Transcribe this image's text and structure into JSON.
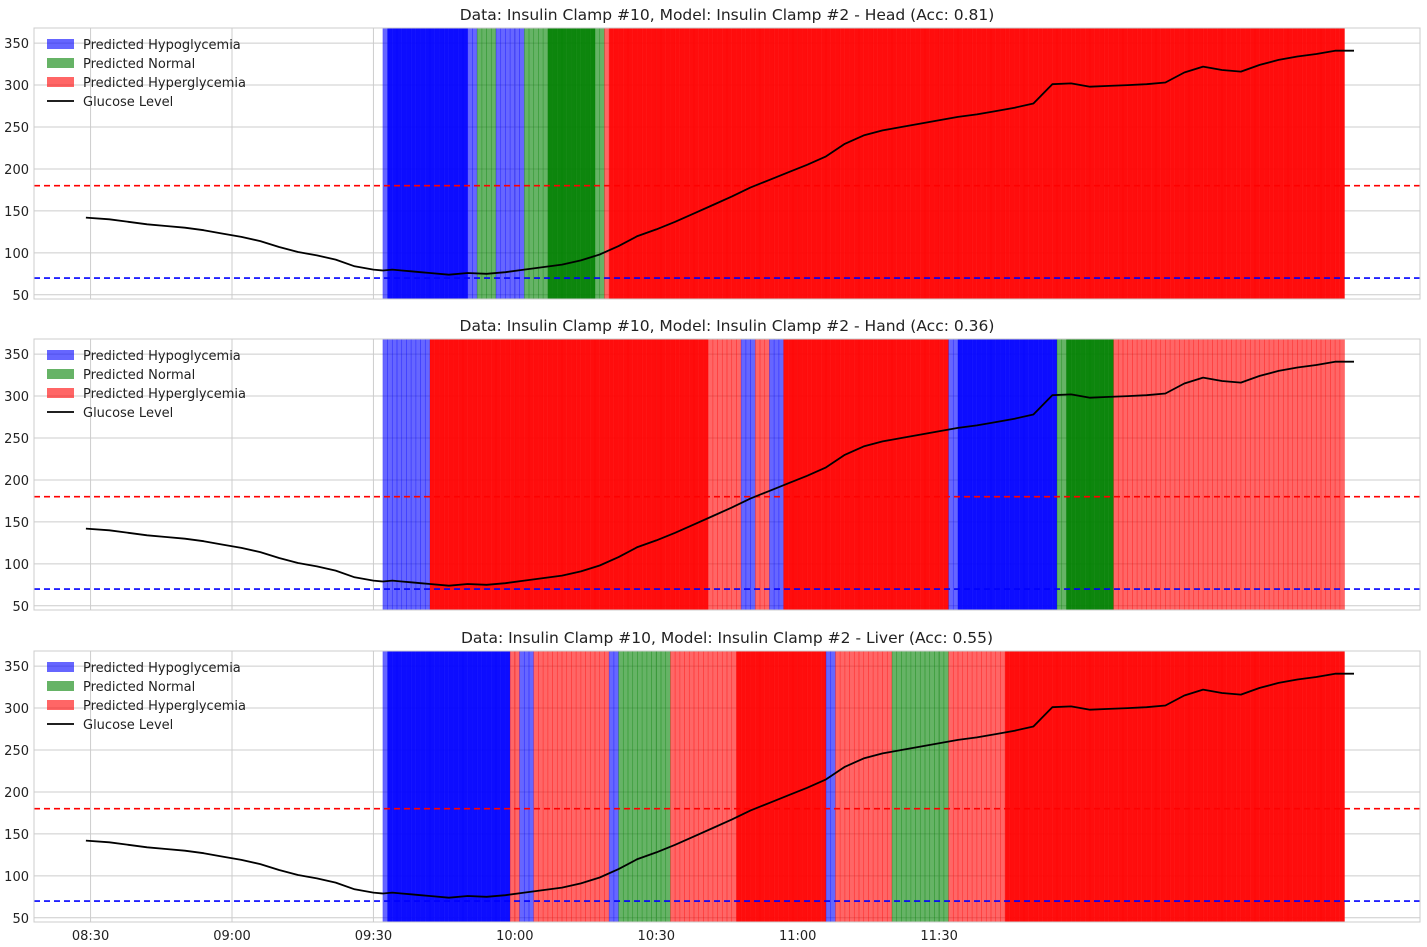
{
  "chart_data": {
    "type": "area",
    "x_ticks": [
      "08:30",
      "09:00",
      "09:30",
      "10:00",
      "10:30",
      "11:00",
      "11:30"
    ],
    "y_ticks": [
      50,
      100,
      150,
      200,
      250,
      300,
      350
    ],
    "ylim": [
      45,
      368
    ],
    "xlim_minutes": [
      -12,
      282
    ],
    "grid": true,
    "legend_position": "upper-left",
    "legend": {
      "hypo": "Predicted Hypoglycemia",
      "normal": "Predicted Normal",
      "hyper": "Predicted Hyperglycemia",
      "glucose": "Glucose Level"
    },
    "colors": {
      "hypo": "#0000ff",
      "normal": "#008000",
      "hyper": "#ff0000",
      "glucose": "#000000",
      "hypo_threshold": "#0000ff",
      "hyper_threshold": "#ff0000"
    },
    "thresholds": {
      "hypo": 70,
      "hyper": 180
    },
    "glucose": {
      "x_minutes": [
        -1,
        4,
        8,
        12,
        16,
        20,
        24,
        28,
        32,
        36,
        40,
        44,
        48,
        52,
        56,
        60,
        62,
        64,
        66,
        68,
        70,
        72,
        76,
        80,
        84,
        88,
        92,
        96,
        100,
        104,
        108,
        112,
        116,
        120,
        124,
        128,
        132,
        136,
        140,
        144,
        148,
        152,
        156,
        160,
        164,
        168,
        172,
        176,
        180,
        184,
        188,
        192,
        196,
        200,
        204,
        208,
        212,
        216,
        220,
        224,
        228,
        232,
        236,
        240,
        244,
        248,
        252,
        256,
        260,
        264,
        268
      ],
      "values": [
        142,
        140,
        137,
        134,
        132,
        130,
        127,
        123,
        119,
        114,
        107,
        101,
        97,
        92,
        84,
        80,
        79,
        80,
        79,
        78,
        77,
        76,
        74,
        76,
        75,
        77,
        80,
        83,
        86,
        91,
        98,
        108,
        120,
        128,
        137,
        147,
        157,
        167,
        178,
        187,
        196,
        205,
        215,
        230,
        240,
        246,
        250,
        254,
        258,
        262,
        265,
        269,
        273,
        278,
        301,
        302,
        298,
        299,
        300,
        301,
        303,
        315,
        322,
        318,
        316,
        324,
        330,
        334,
        337,
        341,
        341
      ]
    },
    "panels": [
      {
        "title": "Data: Insulin Clamp #10, Model: Insulin Clamp #2 - Head (Acc: 0.81)",
        "segments": [
          {
            "start": 62,
            "end": 63,
            "class": "hypo",
            "shade": "light"
          },
          {
            "start": 63,
            "end": 80,
            "class": "hypo",
            "shade": "dark"
          },
          {
            "start": 80,
            "end": 82,
            "class": "hypo",
            "shade": "light"
          },
          {
            "start": 82,
            "end": 86,
            "class": "normal",
            "shade": "light"
          },
          {
            "start": 86,
            "end": 92,
            "class": "hypo",
            "shade": "light"
          },
          {
            "start": 92,
            "end": 97,
            "class": "normal",
            "shade": "light"
          },
          {
            "start": 97,
            "end": 107,
            "class": "normal",
            "shade": "dark"
          },
          {
            "start": 107,
            "end": 109,
            "class": "normal",
            "shade": "light"
          },
          {
            "start": 109,
            "end": 110,
            "class": "hyper",
            "shade": "light"
          },
          {
            "start": 110,
            "end": 266,
            "class": "hyper",
            "shade": "dark"
          }
        ]
      },
      {
        "title": "Data: Insulin Clamp #10, Model: Insulin Clamp #2 - Hand (Acc: 0.36)",
        "segments": [
          {
            "start": 62,
            "end": 72,
            "class": "hypo",
            "shade": "light"
          },
          {
            "start": 72,
            "end": 131,
            "class": "hyper",
            "shade": "dark"
          },
          {
            "start": 131,
            "end": 138,
            "class": "hyper",
            "shade": "light"
          },
          {
            "start": 138,
            "end": 141,
            "class": "hypo",
            "shade": "light"
          },
          {
            "start": 141,
            "end": 144,
            "class": "hyper",
            "shade": "light"
          },
          {
            "start": 144,
            "end": 147,
            "class": "hypo",
            "shade": "light"
          },
          {
            "start": 147,
            "end": 182,
            "class": "hyper",
            "shade": "dark"
          },
          {
            "start": 182,
            "end": 184,
            "class": "hypo",
            "shade": "light"
          },
          {
            "start": 184,
            "end": 205,
            "class": "hypo",
            "shade": "dark"
          },
          {
            "start": 205,
            "end": 207,
            "class": "normal",
            "shade": "light"
          },
          {
            "start": 207,
            "end": 217,
            "class": "normal",
            "shade": "dark"
          },
          {
            "start": 217,
            "end": 266,
            "class": "hyper",
            "shade": "light"
          }
        ]
      },
      {
        "title": "Data: Insulin Clamp #10, Model: Insulin Clamp #2 - Liver (Acc: 0.55)",
        "segments": [
          {
            "start": 62,
            "end": 63,
            "class": "hypo",
            "shade": "light"
          },
          {
            "start": 63,
            "end": 89,
            "class": "hypo",
            "shade": "dark"
          },
          {
            "start": 89,
            "end": 91,
            "class": "hyper",
            "shade": "light"
          },
          {
            "start": 91,
            "end": 94,
            "class": "hypo",
            "shade": "light"
          },
          {
            "start": 94,
            "end": 110,
            "class": "hyper",
            "shade": "light"
          },
          {
            "start": 110,
            "end": 112,
            "class": "hypo",
            "shade": "light"
          },
          {
            "start": 112,
            "end": 123,
            "class": "normal",
            "shade": "light"
          },
          {
            "start": 123,
            "end": 137,
            "class": "hyper",
            "shade": "light"
          },
          {
            "start": 137,
            "end": 156,
            "class": "hyper",
            "shade": "dark"
          },
          {
            "start": 156,
            "end": 158,
            "class": "hypo",
            "shade": "light"
          },
          {
            "start": 158,
            "end": 170,
            "class": "hyper",
            "shade": "light"
          },
          {
            "start": 170,
            "end": 182,
            "class": "normal",
            "shade": "light"
          },
          {
            "start": 182,
            "end": 194,
            "class": "hyper",
            "shade": "light"
          },
          {
            "start": 194,
            "end": 266,
            "class": "hyper",
            "shade": "dark"
          }
        ]
      }
    ]
  }
}
